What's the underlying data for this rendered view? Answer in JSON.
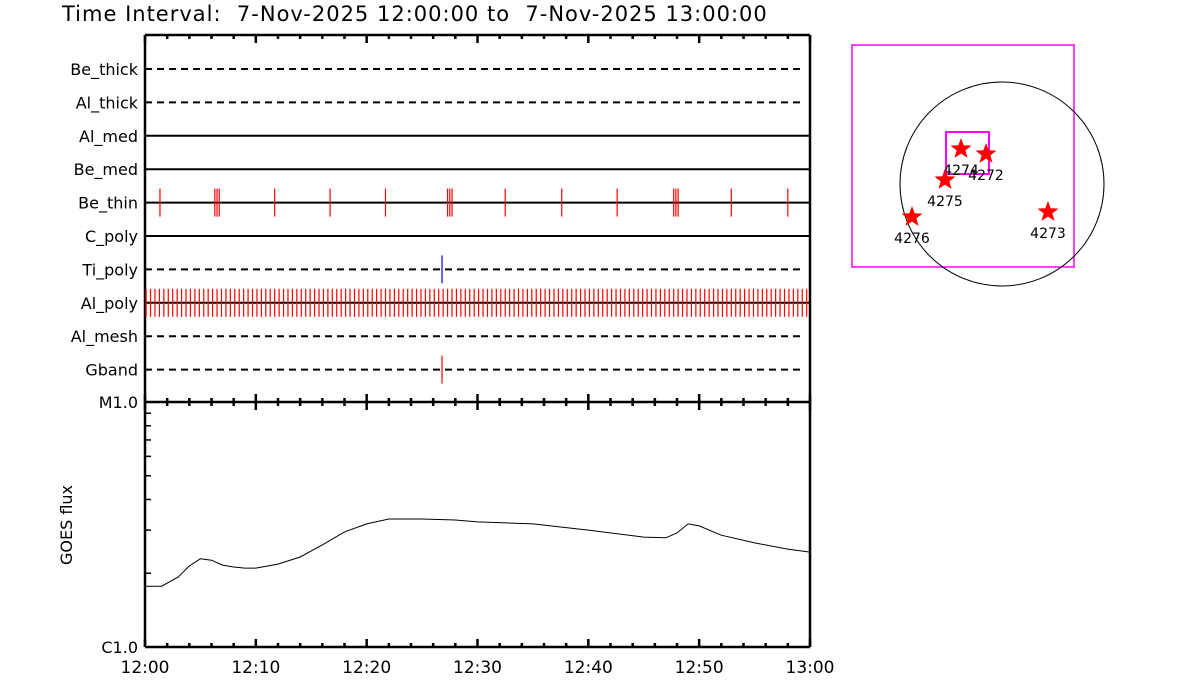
{
  "title": "Time Interval:  7-Nov-2025 12:00:00 to  7-Nov-2025 13:00:00",
  "chart_data": [
    {
      "type": "timeline",
      "x_ticks": [
        "12:00",
        "12:10",
        "12:20",
        "12:30",
        "12:40",
        "12:50",
        "13:00"
      ],
      "xlim_minutes_after_1200": [
        0,
        60
      ],
      "rows": [
        {
          "name": "Be_thick",
          "line": "dashed",
          "events": []
        },
        {
          "name": "Al_thick",
          "line": "dashed",
          "events": []
        },
        {
          "name": "Al_med",
          "line": "solid",
          "events": []
        },
        {
          "name": "Be_med",
          "line": "solid",
          "events": []
        },
        {
          "name": "Be_thin",
          "line": "solid",
          "color": "#ff0000",
          "events": [
            1.35,
            6.3,
            6.5,
            6.7,
            11.7,
            16.7,
            21.7,
            27.3,
            27.5,
            27.7,
            32.5,
            37.6,
            42.6,
            47.7,
            47.9,
            48.1,
            52.9,
            58.0
          ]
        },
        {
          "name": "C_poly",
          "line": "solid",
          "events": []
        },
        {
          "name": "Ti_poly",
          "line": "dashed",
          "color": "#0000ff",
          "events": [
            26.8
          ]
        },
        {
          "name": "Al_poly",
          "line": "solid",
          "color": "#ff0000",
          "events": [
            0.1,
            0.5,
            0.9,
            1.3,
            1.7,
            2.1,
            2.5,
            2.9,
            3.3,
            3.7,
            4.1,
            4.5,
            4.9,
            5.3,
            5.7,
            6.1,
            6.5,
            6.9,
            7.3,
            7.7,
            8.1,
            8.5,
            8.9,
            9.3,
            9.7,
            10.1,
            10.5,
            10.9,
            11.3,
            11.7,
            12.1,
            12.5,
            12.9,
            13.3,
            13.7,
            14.1,
            14.5,
            14.9,
            15.3,
            15.7,
            16.1,
            16.5,
            16.9,
            17.3,
            17.7,
            18.1,
            18.5,
            18.9,
            19.3,
            19.7,
            20.1,
            20.5,
            20.9,
            21.3,
            21.7,
            22.1,
            22.5,
            22.9,
            23.3,
            23.7,
            24.1,
            24.5,
            24.9,
            25.3,
            25.7,
            26.1,
            26.5,
            26.9,
            27.3,
            27.7,
            28.1,
            28.5,
            28.9,
            29.3,
            29.7,
            30.1,
            30.5,
            30.9,
            31.3,
            31.7,
            32.1,
            32.5,
            32.9,
            33.3,
            33.7,
            34.1,
            34.5,
            34.9,
            35.3,
            35.7,
            36.1,
            36.5,
            36.9,
            37.3,
            37.7,
            38.1,
            38.5,
            38.9,
            39.3,
            39.7,
            40.1,
            40.5,
            40.9,
            41.3,
            41.7,
            42.1,
            42.5,
            42.9,
            43.3,
            43.7,
            44.1,
            44.5,
            44.9,
            45.3,
            45.7,
            46.1,
            46.5,
            46.9,
            47.3,
            47.7,
            48.1,
            48.5,
            48.9,
            49.3,
            49.7,
            50.1,
            50.5,
            50.9,
            51.3,
            51.7,
            52.1,
            52.5,
            52.9,
            53.3,
            53.7,
            54.1,
            54.5,
            54.9,
            55.3,
            55.7,
            56.1,
            56.5,
            56.9,
            57.3,
            57.7,
            58.1,
            58.5,
            58.9,
            59.3,
            59.7
          ]
        },
        {
          "name": "Al_mesh",
          "line": "dashed",
          "events": []
        },
        {
          "name": "Gband",
          "line": "dashed",
          "color": "#ff0000",
          "events": [
            26.8
          ]
        }
      ]
    },
    {
      "type": "line",
      "ylabel": "GOES flux",
      "y_scale": "log",
      "y_ticks": [
        {
          "label": "C1.0",
          "value": 1e-06
        },
        {
          "label": "M1.0",
          "value": 1e-05
        }
      ],
      "ylim": [
        1e-06,
        1e-05
      ],
      "x_ticks": [
        "12:00",
        "12:10",
        "12:20",
        "12:30",
        "12:40",
        "12:50",
        "13:00"
      ],
      "x_minutes_after_1200": [
        0,
        1.5,
        3,
        4,
        5,
        6,
        7,
        8,
        9,
        10,
        12,
        14,
        16,
        18,
        20,
        22,
        25,
        28,
        30,
        35,
        40,
        45,
        47,
        48,
        49,
        50,
        52,
        55,
        58,
        60
      ],
      "y": [
        1.77e-06,
        1.77e-06,
        1.93e-06,
        2.14e-06,
        2.29e-06,
        2.26e-06,
        2.16e-06,
        2.12e-06,
        2.1e-06,
        2.1e-06,
        2.18e-06,
        2.33e-06,
        2.61e-06,
        2.95e-06,
        3.18e-06,
        3.33e-06,
        3.33e-06,
        3.3e-06,
        3.24e-06,
        3.18e-06,
        3e-06,
        2.81e-06,
        2.79e-06,
        2.92e-06,
        3.18e-06,
        3.12e-06,
        2.86e-06,
        2.66e-06,
        2.51e-06,
        2.44e-06
      ],
      "color": "#000000"
    }
  ],
  "context_map": {
    "box_color": "#ff00ff",
    "star_color": "#ff0000",
    "regions": [
      {
        "label": "4274"
      },
      {
        "label": "4272"
      },
      {
        "label": "4275"
      },
      {
        "label": "4276"
      },
      {
        "label": "4273"
      }
    ]
  }
}
